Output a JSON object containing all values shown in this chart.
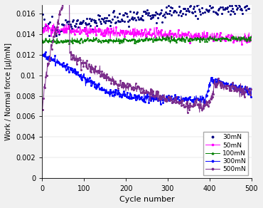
{
  "title": "",
  "xlabel": "Cycle number",
  "ylabel": "Work / Normal force [μJ/mN]",
  "xlim": [
    0,
    500
  ],
  "ylim": [
    0,
    0.0168
  ],
  "yticks": [
    0,
    0.002,
    0.004,
    0.006,
    0.008,
    0.01,
    0.012,
    0.014,
    0.016
  ],
  "ytick_labels": [
    "0",
    "0.002",
    "0.004",
    "0.006",
    "0.008",
    "0.01",
    "0.012",
    "0.014",
    "0.016"
  ],
  "xticks": [
    0,
    100,
    200,
    300,
    400,
    500
  ],
  "legend_labels": [
    "30mN",
    "50mN",
    "100mN",
    "300mN",
    "500mN"
  ],
  "colors": {
    "30mN": "#000080",
    "50mN": "#FF00FF",
    "100mN": "#008000",
    "300mN": "#0000FF",
    "500mN": "#7B2D8B"
  },
  "bg_color": "#f0f0f0",
  "plot_bg": "#ffffff"
}
